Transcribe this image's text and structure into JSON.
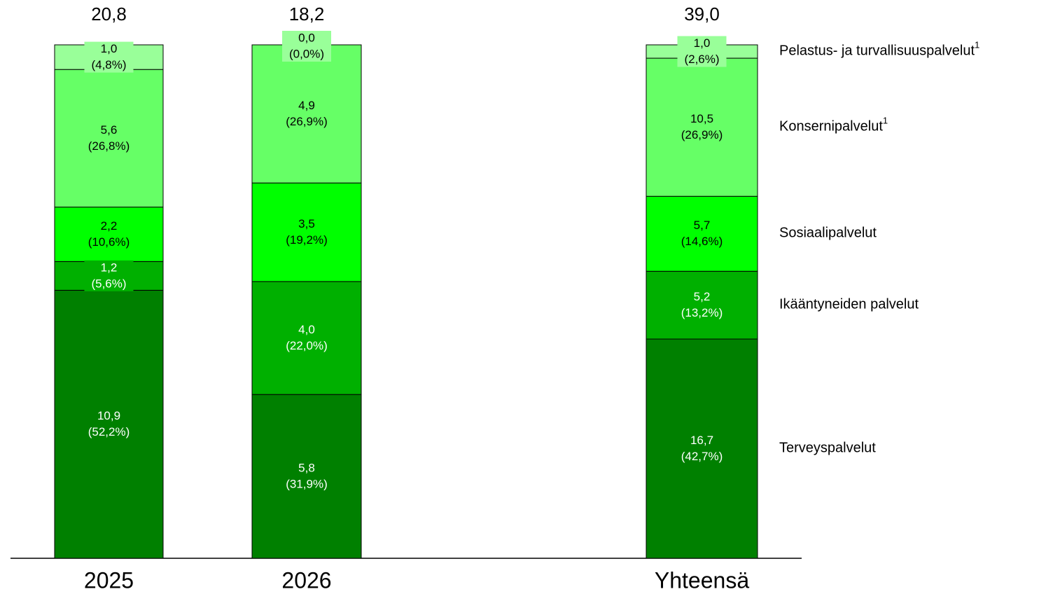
{
  "chart_data": {
    "type": "stacked_percent_bar",
    "categories": [
      "2025",
      "2026",
      "Yhteensä"
    ],
    "totals": [
      20.8,
      18.2,
      39.0
    ],
    "total_labels": [
      "20,8",
      "18,2",
      "39,0"
    ],
    "ylim": [
      0,
      100
    ],
    "series": [
      {
        "name": "Terveyspalvelut",
        "color": "#008000",
        "label_color": "#ffffff",
        "values": [
          52.2,
          31.9,
          42.7
        ],
        "value_labels": [
          "(52,2%)",
          "(31,9%)",
          "(42,7%)"
        ],
        "amounts": [
          10.9,
          5.8,
          16.7
        ],
        "amount_labels": [
          "10,9",
          "5,8",
          "16,7"
        ]
      },
      {
        "name": "Ikääntyneiden palvelut",
        "color": "#00b000",
        "label_color": "#ffffff",
        "values": [
          5.6,
          22.0,
          13.2
        ],
        "value_labels": [
          "(5,6%)",
          "(22,0%)",
          "(13,2%)"
        ],
        "amounts": [
          1.2,
          4.0,
          5.2
        ],
        "amount_labels": [
          "1,2",
          "4,0",
          "5,2"
        ]
      },
      {
        "name": "Sosiaalipalvelut",
        "color": "#00ff00",
        "label_color": "#000000",
        "values": [
          10.6,
          19.2,
          14.6
        ],
        "value_labels": [
          "(10,6%)",
          "(19,2%)",
          "(14,6%)"
        ],
        "amounts": [
          2.2,
          3.5,
          5.7
        ],
        "amount_labels": [
          "2,2",
          "3,5",
          "5,7"
        ]
      },
      {
        "name": "Konsernipalvelut",
        "note": "1",
        "color": "#66ff66",
        "label_color": "#000000",
        "values": [
          26.8,
          26.9,
          26.9
        ],
        "value_labels": [
          "(26,8%)",
          "(26,9%)",
          "(26,9%)"
        ],
        "amounts": [
          5.6,
          4.9,
          10.5
        ],
        "amount_labels": [
          "5,6",
          "4,9",
          "10,5"
        ]
      },
      {
        "name": "Pelastus- ja turvallisuuspalvelut",
        "note": "1",
        "color": "#99ff99",
        "label_color": "#000000",
        "values": [
          4.8,
          0.0,
          2.6
        ],
        "value_labels": [
          "(4,8%)",
          "(0,0%)",
          "(2,6%)"
        ],
        "amounts": [
          1.0,
          0.0,
          1.0
        ],
        "amount_labels": [
          "1,0",
          "0,0",
          "1,0"
        ]
      }
    ]
  }
}
